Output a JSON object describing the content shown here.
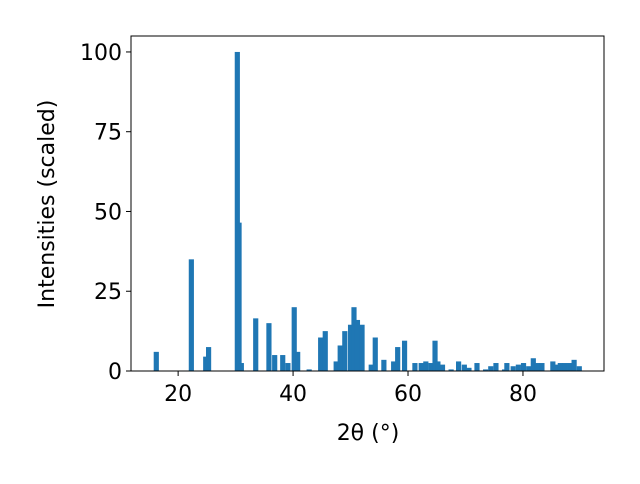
{
  "chart_data": {
    "type": "bar",
    "x_label": "2θ (°)",
    "y_label": "Intensities (scaled)",
    "color": "#1f77b4",
    "x": [
      16.2,
      22.3,
      24.8,
      25.3,
      30.3,
      30.6,
      31.0,
      33.5,
      35.8,
      36.8,
      38.2,
      39.1,
      40.2,
      40.8,
      42.8,
      44.8,
      45.6,
      47.5,
      48.2,
      49.0,
      50.0,
      50.6,
      51.2,
      52.0,
      53.6,
      54.3,
      55.8,
      57.5,
      58.2,
      59.4,
      61.2,
      62.3,
      63.1,
      64.0,
      64.7,
      65.2,
      66.0,
      67.5,
      68.8,
      69.8,
      70.6,
      72.0,
      73.5,
      74.4,
      75.3,
      76.8,
      77.2,
      78.3,
      79.2,
      80.1,
      81.0,
      81.8,
      82.5,
      83.3,
      85.2,
      85.8,
      86.5,
      87.3,
      88.2,
      88.9,
      89.8
    ],
    "values": [
      6,
      35,
      4.5,
      7.5,
      100,
      46.5,
      2.5,
      16.5,
      15,
      5,
      5,
      2.5,
      20,
      6,
      0.5,
      10.5,
      12.5,
      3,
      8,
      12.5,
      14.5,
      20,
      16,
      14.5,
      2,
      10.5,
      3.5,
      3,
      7.5,
      9.5,
      2.5,
      2.5,
      3,
      2.5,
      9.5,
      3,
      2,
      0.5,
      3,
      2,
      1,
      2.5,
      0.5,
      1.5,
      2.5,
      0.5,
      2.5,
      1.5,
      2,
      2.5,
      1.5,
      4,
      2.5,
      2.5,
      3,
      2,
      2.5,
      2.5,
      2.5,
      3.5,
      1.5
    ],
    "xlim": [
      11.8,
      94.1
    ],
    "ylim": [
      0,
      105
    ],
    "xticks": [
      20,
      40,
      60,
      80
    ],
    "yticks": [
      0,
      25,
      50,
      75,
      100
    ]
  }
}
